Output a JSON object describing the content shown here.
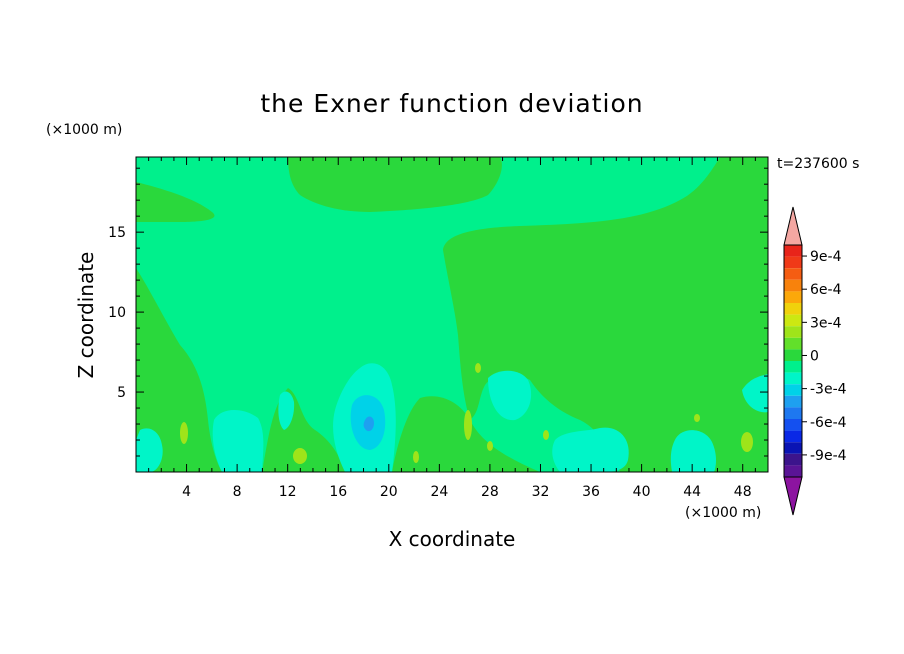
{
  "chart_data": {
    "type": "heatmap",
    "subtype": "filled-contour",
    "title": "the Exner function deviation",
    "xlabel": "X coordinate",
    "ylabel": "Z coordinate",
    "x_unit": "(×1000 m)",
    "y_unit": "(×1000 m)",
    "time_label": "t=237600 s",
    "xlim": [
      0,
      50
    ],
    "ylim": [
      0,
      19.7
    ],
    "x_ticks": [
      4,
      8,
      12,
      16,
      20,
      24,
      28,
      32,
      36,
      40,
      44,
      48
    ],
    "y_ticks": [
      5,
      10,
      15
    ],
    "colorbar": {
      "levels": [
        -0.0011,
        -0.001,
        -0.0009,
        -0.0008,
        -0.0007,
        -0.0006,
        -0.0005,
        -0.0004,
        -0.0003,
        -0.0002,
        -0.0001,
        0,
        0.0001,
        0.0002,
        0.0003,
        0.0004,
        0.0005,
        0.0006,
        0.0007,
        0.0008,
        0.0009,
        0.001
      ],
      "tick_labels": [
        "9e-4",
        "6e-4",
        "3e-4",
        "0",
        "-3e-4",
        "-6e-4",
        "-9e-4"
      ],
      "tick_values": [
        0.0009,
        0.0006,
        0.0003,
        0,
        -0.0003,
        -0.0006,
        -0.0009
      ],
      "colors_top_to_bottom": [
        "#f4a7a2",
        "#e8241a",
        "#f03a18",
        "#f55d12",
        "#f8820c",
        "#fca80a",
        "#f0d20c",
        "#cce812",
        "#9fe41a",
        "#62e02a",
        "#2ad83c",
        "#00f08c",
        "#00f5c8",
        "#00d2e8",
        "#1ea0f0",
        "#1e78f0",
        "#1450f0",
        "#0a28e6",
        "#0a14b4",
        "#3c148c",
        "#5a1496",
        "#8c14a0"
      ]
    },
    "regions": [
      {
        "value_class": "0",
        "color": "#00f08c",
        "description": "background"
      },
      {
        "value_class": "1e-4",
        "color": "#2ad83c",
        "description": "right half and lower layers"
      },
      {
        "value_class": "-1e-4",
        "color": "#00f5c8",
        "description": "low-level cells"
      },
      {
        "value_class": "-2e-4",
        "color": "#00d2e8",
        "description": "cell near x=18"
      },
      {
        "value_class": "-3e-4",
        "color": "#1ea0f0",
        "description": "core near x=18.5, z=3.5"
      },
      {
        "value_class": "2e-4",
        "color": "#9fe41a",
        "description": "small positive patches"
      }
    ]
  }
}
